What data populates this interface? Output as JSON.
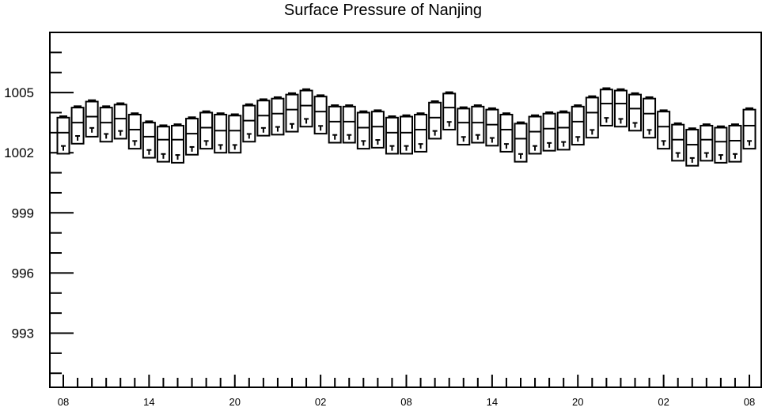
{
  "title": "Surface Pressure of Nanjing",
  "chart_data": {
    "type": "candlestick",
    "title": "Surface Pressure of Nanjing",
    "xlabel": "",
    "ylabel": "",
    "ylim": [
      990.3,
      1008.0
    ],
    "y_ticks": [
      993,
      996,
      999,
      1002,
      1005
    ],
    "y_tick_labels": [
      "993",
      "996",
      "999",
      "1002",
      "1005"
    ],
    "x_tick_labels": [
      "08",
      "14",
      "20",
      "02",
      "08",
      "14",
      "20",
      "02",
      "08"
    ],
    "x_tick_label_positions": [
      0,
      6,
      12,
      18,
      24,
      30,
      36,
      42,
      48
    ],
    "x_range": [
      -1,
      49
    ],
    "candles": [
      {
        "t": 0,
        "low": 1001.95,
        "high": 1003.75,
        "mid": 1003.0,
        "min": 1002.1,
        "max": 1003.8
      },
      {
        "t": 1,
        "low": 1002.45,
        "high": 1004.25,
        "mid": 1003.5,
        "min": 1002.6,
        "max": 1004.3
      },
      {
        "t": 2,
        "low": 1002.8,
        "high": 1004.55,
        "mid": 1003.8,
        "min": 1003.0,
        "max": 1004.6
      },
      {
        "t": 3,
        "low": 1002.55,
        "high": 1004.25,
        "mid": 1003.5,
        "min": 1002.7,
        "max": 1004.3
      },
      {
        "t": 4,
        "low": 1002.7,
        "high": 1004.4,
        "mid": 1003.7,
        "min": 1002.85,
        "max": 1004.45
      },
      {
        "t": 5,
        "low": 1002.2,
        "high": 1003.9,
        "mid": 1003.15,
        "min": 1002.35,
        "max": 1003.95
      },
      {
        "t": 6,
        "low": 1001.75,
        "high": 1003.5,
        "mid": 1002.8,
        "min": 1001.9,
        "max": 1003.55
      },
      {
        "t": 7,
        "low": 1001.55,
        "high": 1003.3,
        "mid": 1002.65,
        "min": 1001.7,
        "max": 1003.35
      },
      {
        "t": 8,
        "low": 1001.5,
        "high": 1003.35,
        "mid": 1002.65,
        "min": 1001.65,
        "max": 1003.4
      },
      {
        "t": 9,
        "low": 1001.9,
        "high": 1003.7,
        "mid": 1002.95,
        "min": 1002.05,
        "max": 1003.75
      },
      {
        "t": 10,
        "low": 1002.2,
        "high": 1004.0,
        "mid": 1003.25,
        "min": 1002.35,
        "max": 1004.05
      },
      {
        "t": 11,
        "low": 1002.0,
        "high": 1003.9,
        "mid": 1003.1,
        "min": 1002.15,
        "max": 1003.95
      },
      {
        "t": 12,
        "low": 1002.0,
        "high": 1003.85,
        "mid": 1003.1,
        "min": 1002.15,
        "max": 1003.9
      },
      {
        "t": 13,
        "low": 1002.55,
        "high": 1004.35,
        "mid": 1003.6,
        "min": 1002.7,
        "max": 1004.4
      },
      {
        "t": 14,
        "low": 1002.85,
        "high": 1004.6,
        "mid": 1003.85,
        "min": 1003.0,
        "max": 1004.65
      },
      {
        "t": 15,
        "low": 1002.9,
        "high": 1004.7,
        "mid": 1003.95,
        "min": 1003.05,
        "max": 1004.75
      },
      {
        "t": 16,
        "low": 1003.05,
        "high": 1004.9,
        "mid": 1004.15,
        "min": 1003.2,
        "max": 1004.95
      },
      {
        "t": 17,
        "low": 1003.3,
        "high": 1005.1,
        "mid": 1004.35,
        "min": 1003.45,
        "max": 1005.15
      },
      {
        "t": 18,
        "low": 1002.95,
        "high": 1004.8,
        "mid": 1004.05,
        "min": 1003.1,
        "max": 1004.85
      },
      {
        "t": 19,
        "low": 1002.5,
        "high": 1004.3,
        "mid": 1003.55,
        "min": 1002.65,
        "max": 1004.35
      },
      {
        "t": 20,
        "low": 1002.5,
        "high": 1004.3,
        "mid": 1003.55,
        "min": 1002.65,
        "max": 1004.35
      },
      {
        "t": 21,
        "low": 1002.2,
        "high": 1004.0,
        "mid": 1003.25,
        "min": 1002.35,
        "max": 1004.05
      },
      {
        "t": 22,
        "low": 1002.25,
        "high": 1004.05,
        "mid": 1003.3,
        "min": 1002.4,
        "max": 1004.1
      },
      {
        "t": 23,
        "low": 1001.95,
        "high": 1003.75,
        "mid": 1003.0,
        "min": 1002.1,
        "max": 1003.8
      },
      {
        "t": 24,
        "low": 1001.95,
        "high": 1003.8,
        "mid": 1003.0,
        "min": 1002.1,
        "max": 1003.85
      },
      {
        "t": 25,
        "low": 1002.05,
        "high": 1003.9,
        "mid": 1003.15,
        "min": 1002.2,
        "max": 1003.95
      },
      {
        "t": 26,
        "low": 1002.7,
        "high": 1004.5,
        "mid": 1003.75,
        "min": 1002.85,
        "max": 1004.55
      },
      {
        "t": 27,
        "low": 1003.15,
        "high": 1004.95,
        "mid": 1004.25,
        "min": 1003.3,
        "max": 1005.0
      },
      {
        "t": 28,
        "low": 1002.4,
        "high": 1004.2,
        "mid": 1003.5,
        "min": 1002.55,
        "max": 1004.25
      },
      {
        "t": 29,
        "low": 1002.5,
        "high": 1004.3,
        "mid": 1003.5,
        "min": 1002.65,
        "max": 1004.35
      },
      {
        "t": 30,
        "low": 1002.35,
        "high": 1004.15,
        "mid": 1003.4,
        "min": 1002.5,
        "max": 1004.2
      },
      {
        "t": 31,
        "low": 1002.05,
        "high": 1003.9,
        "mid": 1003.15,
        "min": 1002.2,
        "max": 1003.95
      },
      {
        "t": 32,
        "low": 1001.55,
        "high": 1003.45,
        "mid": 1002.7,
        "min": 1001.7,
        "max": 1003.5
      },
      {
        "t": 33,
        "low": 1001.95,
        "high": 1003.8,
        "mid": 1003.05,
        "min": 1002.1,
        "max": 1003.85
      },
      {
        "t": 34,
        "low": 1002.1,
        "high": 1003.95,
        "mid": 1003.2,
        "min": 1002.25,
        "max": 1004.0
      },
      {
        "t": 35,
        "low": 1002.15,
        "high": 1004.0,
        "mid": 1003.25,
        "min": 1002.3,
        "max": 1004.05
      },
      {
        "t": 36,
        "low": 1002.4,
        "high": 1004.3,
        "mid": 1003.55,
        "min": 1002.55,
        "max": 1004.35
      },
      {
        "t": 37,
        "low": 1002.75,
        "high": 1004.75,
        "mid": 1004.0,
        "min": 1002.9,
        "max": 1004.8
      },
      {
        "t": 38,
        "low": 1003.35,
        "high": 1005.15,
        "mid": 1004.45,
        "min": 1003.5,
        "max": 1005.2
      },
      {
        "t": 39,
        "low": 1003.3,
        "high": 1005.1,
        "mid": 1004.45,
        "min": 1003.45,
        "max": 1005.15
      },
      {
        "t": 40,
        "low": 1003.1,
        "high": 1004.9,
        "mid": 1004.2,
        "min": 1003.25,
        "max": 1004.95
      },
      {
        "t": 41,
        "low": 1002.75,
        "high": 1004.7,
        "mid": 1003.95,
        "min": 1002.9,
        "max": 1004.75
      },
      {
        "t": 42,
        "low": 1002.2,
        "high": 1004.05,
        "mid": 1003.3,
        "min": 1002.35,
        "max": 1004.1
      },
      {
        "t": 43,
        "low": 1001.6,
        "high": 1003.4,
        "mid": 1002.65,
        "min": 1001.75,
        "max": 1003.45
      },
      {
        "t": 44,
        "low": 1001.35,
        "high": 1003.15,
        "mid": 1002.4,
        "min": 1001.5,
        "max": 1003.2
      },
      {
        "t": 45,
        "low": 1001.6,
        "high": 1003.35,
        "mid": 1002.65,
        "min": 1001.75,
        "max": 1003.4
      },
      {
        "t": 46,
        "low": 1001.5,
        "high": 1003.25,
        "mid": 1002.55,
        "min": 1001.65,
        "max": 1003.3
      },
      {
        "t": 47,
        "low": 1001.55,
        "high": 1003.35,
        "mid": 1002.6,
        "min": 1001.7,
        "max": 1003.4
      },
      {
        "t": 48,
        "low": 1002.2,
        "high": 1004.15,
        "mid": 1003.35,
        "min": 1002.35,
        "max": 1004.2
      }
    ],
    "grid": false,
    "legend": "none",
    "colors": {
      "stroke": "#000000",
      "fill": "#ffffff"
    }
  }
}
